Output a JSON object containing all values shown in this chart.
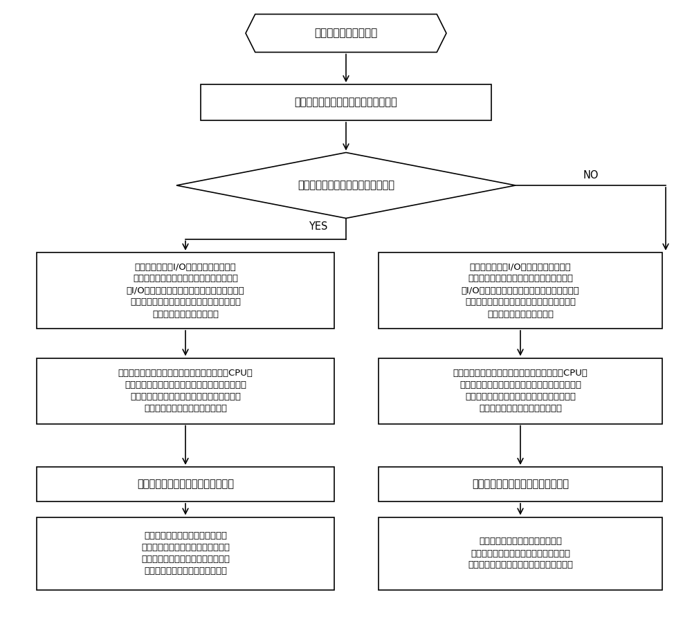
{
  "bg_color": "#ffffff",
  "line_color": "#000000",
  "text_color": "#000000",
  "start_text": "等待费控模式切换信号",
  "rect1_text": "电能表内的时间到达预设的切换时间；",
  "diamond_text": "本地费控模式切换至远程费控模式？",
  "left2_lines": [
    "在主控模块控制I/O端口刷新前，将当前",
    "电量数据和校验码存储到非易失存储器中，",
    "在I/O端口刷新后，对当前电量数据进行校验，",
    "并在运行过程中由主控模块通过计量芯片模块",
    "对当前电量数据进行更新；"
  ],
  "right2_lines": [
    "在主控模块控制I/O端口刷新前，将当前",
    "电量数据和校验码存储到非易失存储器中，",
    "在I/O端口刷新后，对当前电量数据进行校验，",
    "并在运行过程中由主控模块通过计量芯片模块",
    "对当前电量数据进行更新；"
  ],
  "left3_lines": [
    "单相智能电能表的主控模块控制关闭射频卡或CPU卡",
    "的寻卡检测功能、电费计算功能、购电记录功能、",
    "异常插卡的检测和记录功能、阶梯电价功能、",
    "费率电价功能和年阶梯结算功能；"
  ],
  "right3_lines": [
    "单相智能电能表的主控模块控制开启射频卡或CPU卡",
    "的寻卡检测功能、电费计算功能、购电记录功能、",
    "异常插卡的检测和记录功能、阶梯电价功能、",
    "费率电价功能和年阶梯结算功能；"
  ],
  "left4_text": "自动进行显示模块显示内容的切换；",
  "right4_text": "自动进行显示模块显示内容的切换；",
  "left5_lines": [
    "主控模块自动对本地费控模式下的",
    "历史电量、购电次数和剩余金额进行",
    "结算和保存，对切换时间、切换者和",
    "当前的费控模式进行记录和保存。"
  ],
  "right5_lines": [
    "主控模块自动对远程费控模式下的",
    "历史电量进行结算和保存，对切换时间、",
    "切换者和当前的费控模式进行记录和保存。"
  ],
  "yes_label": "YES",
  "no_label": "NO"
}
